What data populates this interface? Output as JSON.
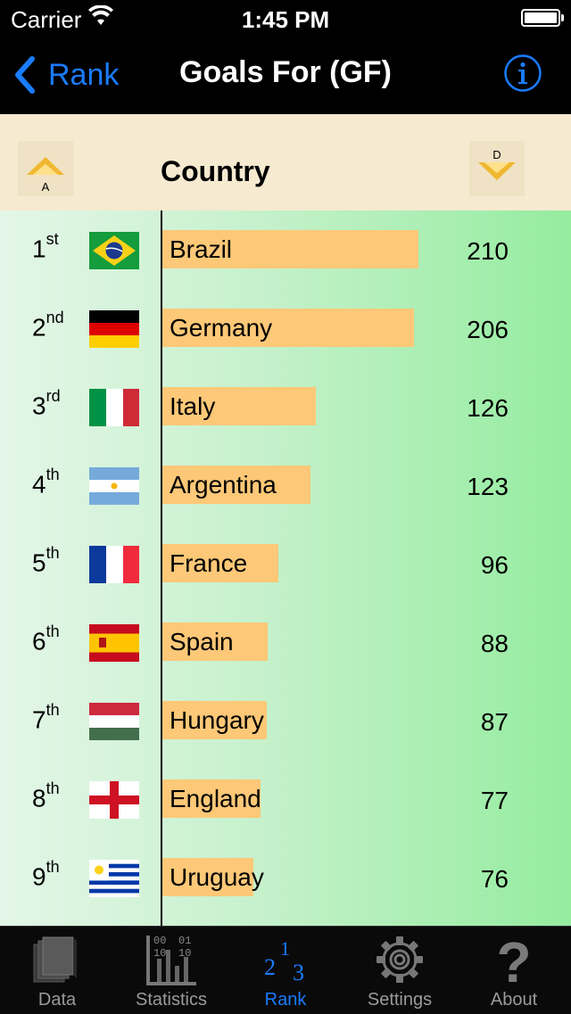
{
  "status_bar": {
    "carrier": "Carrier",
    "time": "1:45 PM"
  },
  "nav": {
    "back_label": "Rank",
    "title": "Goals For (GF)"
  },
  "header": {
    "column": "Country",
    "asc_letter": "A",
    "desc_letter": "D"
  },
  "rows": [
    {
      "rank": "1",
      "suffix": "st",
      "country": "Brazil",
      "value": "210",
      "flag": "brazil-flag-icon"
    },
    {
      "rank": "2",
      "suffix": "nd",
      "country": "Germany",
      "value": "206",
      "flag": "germany-flag-icon"
    },
    {
      "rank": "3",
      "suffix": "rd",
      "country": "Italy",
      "value": "126",
      "flag": "italy-flag-icon"
    },
    {
      "rank": "4",
      "suffix": "th",
      "country": "Argentina",
      "value": "123",
      "flag": "argentina-flag-icon"
    },
    {
      "rank": "5",
      "suffix": "th",
      "country": "France",
      "value": "96",
      "flag": "france-flag-icon"
    },
    {
      "rank": "6",
      "suffix": "th",
      "country": "Spain",
      "value": "88",
      "flag": "spain-flag-icon"
    },
    {
      "rank": "7",
      "suffix": "th",
      "country": "Hungary",
      "value": "87",
      "flag": "hungary-flag-icon"
    },
    {
      "rank": "8",
      "suffix": "th",
      "country": "England",
      "value": "77",
      "flag": "england-flag-icon"
    },
    {
      "rank": "9",
      "suffix": "th",
      "country": "Uruguay",
      "value": "76",
      "flag": "uruguay-flag-icon"
    }
  ],
  "tabs": [
    {
      "label": "Data",
      "icon": "data-icon"
    },
    {
      "label": "Statistics",
      "icon": "statistics-icon",
      "icon_text": [
        "00",
        "01",
        "10",
        "10"
      ]
    },
    {
      "label": "Rank",
      "icon": "rank-icon",
      "icon_text": [
        "2",
        "1",
        "3"
      ],
      "active": true
    },
    {
      "label": "Settings",
      "icon": "gear-icon"
    },
    {
      "label": "About",
      "icon": "question-mark-icon",
      "icon_text": [
        "?"
      ]
    }
  ],
  "colors": {
    "accent": "#1a7cff",
    "bar": "#fdc877",
    "header_bg": "#f6ead0",
    "nav_bg": "#000000"
  }
}
